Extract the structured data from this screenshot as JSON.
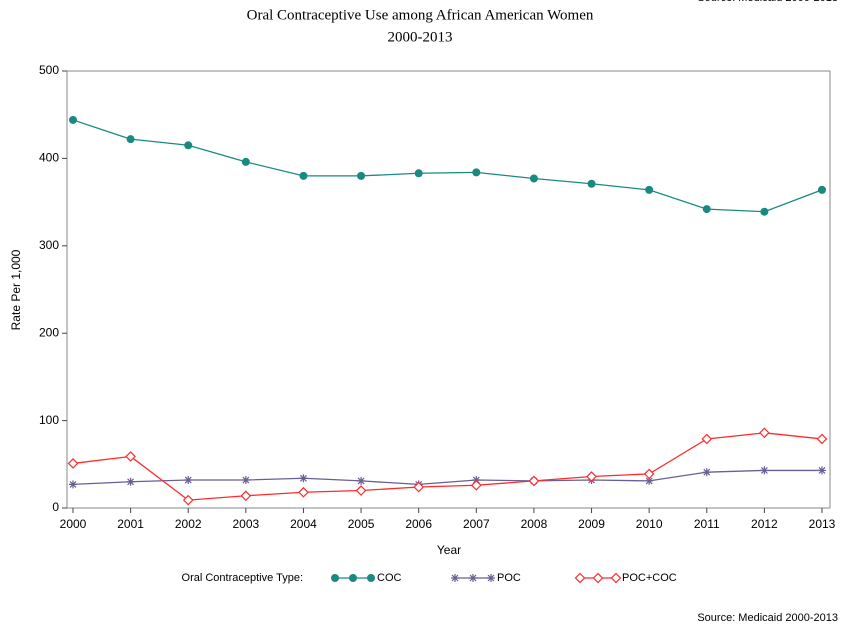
{
  "chart_data": {
    "type": "line",
    "title": "Oral Contraceptive Use among African American Women",
    "subtitle": "2000-2013",
    "source": "Source: Medicaid 2000-2013",
    "x_label": "Year",
    "y_label": "Rate Per 1,000",
    "legend_title": "Oral Contraceptive Type:",
    "legend_position": "bottom",
    "x": [
      2000,
      2001,
      2002,
      2003,
      2004,
      2005,
      2006,
      2007,
      2008,
      2009,
      2010,
      2011,
      2012,
      2013
    ],
    "xlim": [
      2000,
      2013
    ],
    "xticks": [
      2000,
      2001,
      2002,
      2003,
      2004,
      2005,
      2006,
      2007,
      2008,
      2009,
      2010,
      2011,
      2012,
      2013
    ],
    "ylim": [
      0,
      500
    ],
    "yticks": [
      0,
      100,
      200,
      300,
      400,
      500
    ],
    "series": [
      {
        "name": "COC",
        "color": "#1a8a80",
        "marker": "circle",
        "values": [
          444,
          422,
          415,
          396,
          380,
          380,
          383,
          384,
          377,
          371,
          364,
          342,
          339,
          364
        ]
      },
      {
        "name": "POC",
        "color": "#6a5e96",
        "marker": "star",
        "values": [
          27,
          30,
          32,
          32,
          34,
          31,
          27,
          32,
          31,
          32,
          31,
          41,
          43,
          43
        ]
      },
      {
        "name": "POC+COC",
        "color": "#ff2a2a",
        "marker": "diamond",
        "values": [
          51,
          59,
          9,
          14,
          18,
          20,
          24,
          26,
          31,
          36,
          39,
          79,
          86,
          79
        ]
      }
    ]
  }
}
